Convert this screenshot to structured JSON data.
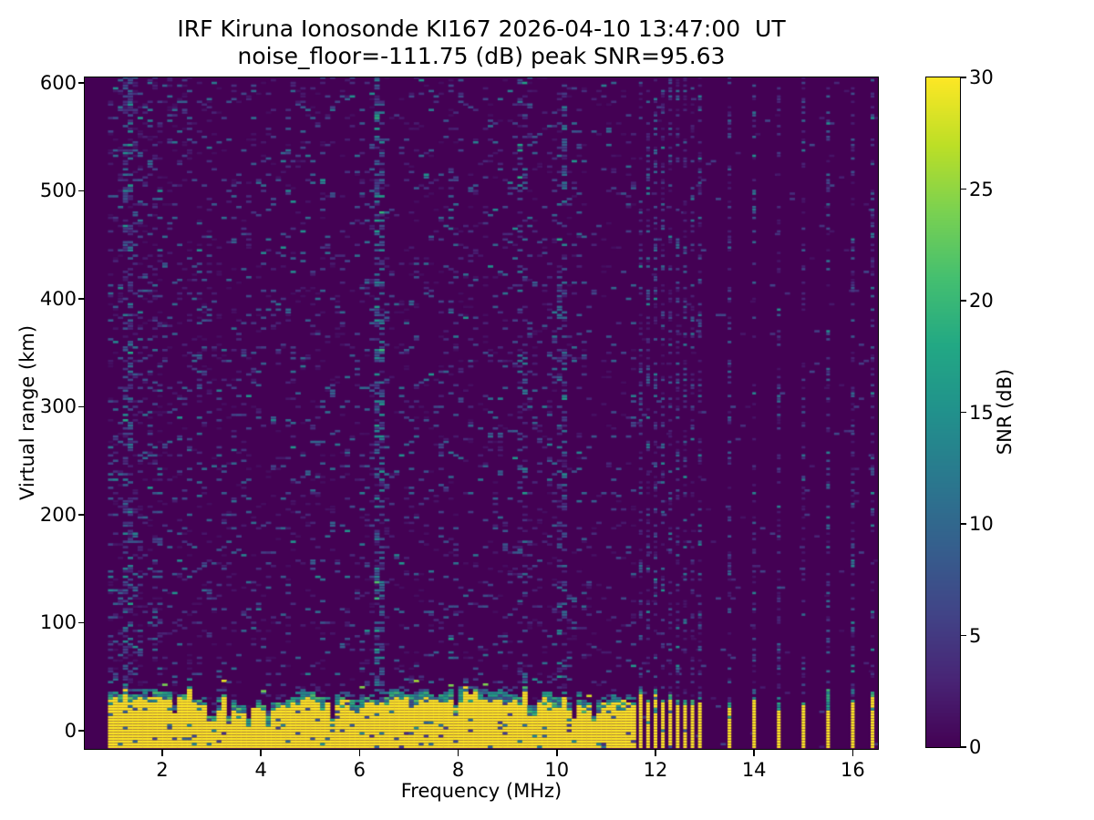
{
  "figure": {
    "background_color": "#ffffff",
    "frame_color": "#000000",
    "text_color": "#000000"
  },
  "chart_data": {
    "type": "heatmap",
    "title_line1": "IRF Kiruna Ionosonde KI167 2026-04-10 13:47:00  UT",
    "title_line2": "noise_floor=-111.75 (dB) peak SNR=95.63",
    "station": "KI167",
    "timestamp_ut": "2026-04-10 13:47:00",
    "noise_floor_db": -111.75,
    "peak_snr_db": 95.63,
    "xlabel": "Frequency (MHz)",
    "ylabel": "Virtual range (km)",
    "xlim_mhz": [
      0.43,
      16.51
    ],
    "ylim_km": [
      -17,
      605
    ],
    "xticks_mhz": [
      2,
      4,
      6,
      8,
      10,
      12,
      14,
      16
    ],
    "yticks_km": [
      0,
      100,
      200,
      300,
      400,
      500,
      600
    ],
    "colorbar": {
      "label": "SNR (dB)",
      "min": 0,
      "max": 30,
      "ticks": [
        0,
        5,
        10,
        15,
        20,
        25,
        30
      ],
      "colormap": "viridis",
      "stops": [
        [
          0.0,
          "#440154"
        ],
        [
          0.1,
          "#482475"
        ],
        [
          0.2,
          "#414487"
        ],
        [
          0.3,
          "#355f8d"
        ],
        [
          0.4,
          "#2a788e"
        ],
        [
          0.5,
          "#21918c"
        ],
        [
          0.6,
          "#22a884"
        ],
        [
          0.7,
          "#44bf70"
        ],
        [
          0.8,
          "#7ad151"
        ],
        [
          0.9,
          "#bddf26"
        ],
        [
          1.0,
          "#fde725"
        ]
      ]
    },
    "sweep": {
      "start_mhz": 0.95,
      "continuous_end_mhz": 11.62,
      "freq_step_mhz": 0.1,
      "range_step_km": 2.5,
      "discrete_mhz": [
        {
          "mhz": 11.7,
          "strength": 1.0
        },
        {
          "mhz": 11.85,
          "strength": 1.0
        },
        {
          "mhz": 12.0,
          "strength": 1.0
        },
        {
          "mhz": 12.15,
          "strength": 1.0
        },
        {
          "mhz": 12.3,
          "strength": 1.0
        },
        {
          "mhz": 12.45,
          "strength": 1.0
        },
        {
          "mhz": 12.6,
          "strength": 1.0
        },
        {
          "mhz": 12.75,
          "strength": 1.0
        },
        {
          "mhz": 12.9,
          "strength": 1.0
        },
        {
          "mhz": 13.5,
          "strength": 1.0
        },
        {
          "mhz": 14.0,
          "strength": 1.0
        },
        {
          "mhz": 14.5,
          "strength": 0.7
        },
        {
          "mhz": 15.0,
          "strength": 1.0
        },
        {
          "mhz": 15.5,
          "strength": 0.55
        },
        {
          "mhz": 16.0,
          "strength": 1.0
        },
        {
          "mhz": 16.4,
          "strength": 1.0
        }
      ]
    },
    "ground_echo": {
      "typical_top_km": 26,
      "min_top_km": 16,
      "max_top_km": 36,
      "snr_db": 30
    },
    "noise_speckle": {
      "background_db": 0,
      "snr_db_range": [
        1,
        14
      ],
      "density_1_to_2_mhz": 0.2,
      "density_2_to_3_mhz": 0.15,
      "density_mid_band": 0.105,
      "density_above_10_mhz": 0.08,
      "density_between_discrete": 0.012,
      "density_discrete_column": 0.3
    },
    "rfi_lines_mhz": [
      {
        "mhz": 1.35,
        "strength": 0.35
      },
      {
        "mhz": 6.35,
        "strength": 1.0
      },
      {
        "mhz": 9.3,
        "strength": 0.3
      },
      {
        "mhz": 10.05,
        "strength": 0.25
      }
    ],
    "render_seed": 1670413
  }
}
